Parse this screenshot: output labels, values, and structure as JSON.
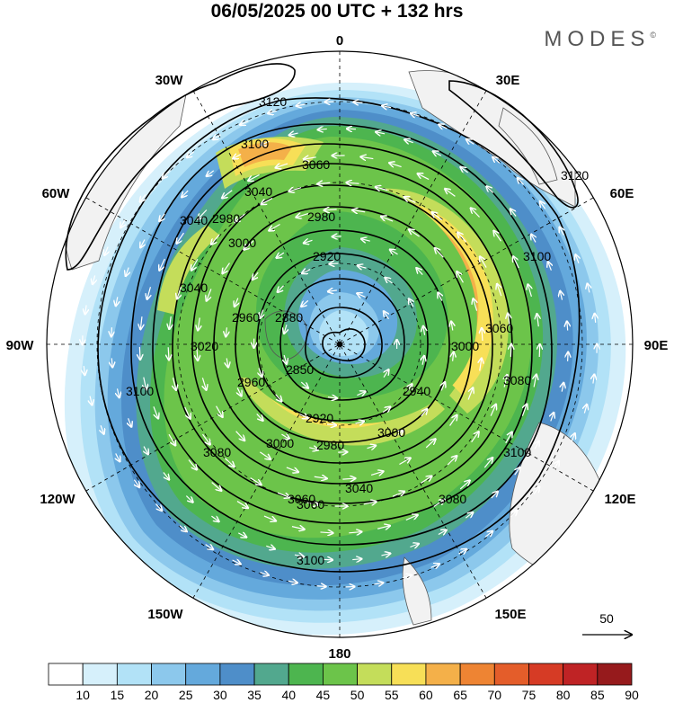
{
  "title": "06/05/2025  00 UTC  + 132 hrs",
  "brand": {
    "name": "MODES",
    "mark": "©"
  },
  "longitude_labels": {
    "n": "0",
    "n30w": "30W",
    "n30e": "30E",
    "w60": "60W",
    "e60": "60E",
    "w90": "90W",
    "e90": "90E",
    "w120": "120W",
    "e120": "120E",
    "s150w": "150W",
    "s150e": "150E",
    "s": "180"
  },
  "contour_labels": [
    "3120",
    "3100",
    "3060",
    "3040",
    "2980",
    "2920",
    "2880",
    "2850",
    "2920",
    "2980",
    "3000",
    "3060",
    "3080",
    "3020",
    "3040",
    "2960",
    "2960",
    "3000",
    "3100",
    "3080",
    "3060",
    "3100",
    "2940",
    "3000",
    "3060",
    "3100",
    "3040",
    "3080",
    "3100",
    "3120",
    "2980",
    "3000",
    "3040"
  ],
  "contour_heights_m": [
    2850,
    2880,
    2920,
    2940,
    2960,
    2980,
    3000,
    3020,
    3040,
    3060,
    3080,
    3100,
    3120
  ],
  "wind_reference": {
    "label": "50",
    "unit_speed": 50
  },
  "colorbar": {
    "ticks": [
      "10",
      "15",
      "20",
      "25",
      "30",
      "35",
      "40",
      "45",
      "50",
      "55",
      "60",
      "65",
      "70",
      "75",
      "80",
      "85",
      "90"
    ],
    "colors": [
      "#ffffff",
      "#d6f0fb",
      "#b2e2f7",
      "#8cc8ec",
      "#64a9dc",
      "#4e8ec9",
      "#52a88e",
      "#4db54f",
      "#6cc44a",
      "#c4dd5a",
      "#f7df57",
      "#f4b049",
      "#ee8433",
      "#e45d2a",
      "#d63b25",
      "#bf2325",
      "#961a1c"
    ]
  },
  "map_style": {
    "land": "#f2f2f2",
    "coast": "#333333",
    "contour": "#000000",
    "vector": "#ffffff"
  }
}
